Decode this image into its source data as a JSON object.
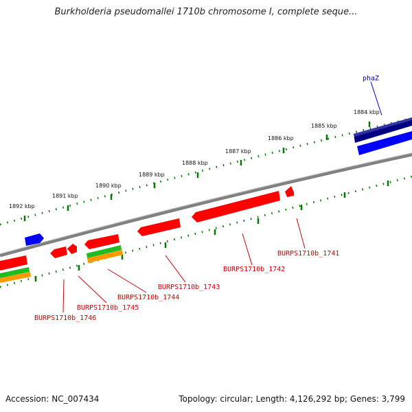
{
  "title": "Burkholderia pseudomallei 1710b chromosome I, complete seque...",
  "footer": {
    "accession": "Accession: NC_007434",
    "summary": "Topology: circular; Length: 4,126,292 bp; Genes: 3,799"
  },
  "scale_labels": [
    "1884 kbp",
    "1885 kbp",
    "1886 kbp",
    "1887 kbp",
    "1888 kbp",
    "1889 kbp",
    "1890 kbp",
    "1891 kbp",
    "1892 kbp"
  ],
  "gene_labels": [
    "phaZ",
    "BURPS1710b_1741",
    "BURPS1710b_1742",
    "BURPS1710b_1743",
    "BURPS1710b_1744",
    "BURPS1710b_1745",
    "BURPS1710b_1746"
  ],
  "colors": {
    "backbone": "#808080",
    "forward_cds": "#0000ff",
    "named_cds": "#000080",
    "reverse_cds": "#ff0000",
    "feature_green": "#22bb22",
    "feature_orange": "#ff9900",
    "ticks": "#007700",
    "label_red": "#cc0000",
    "label_blue": "#000099"
  }
}
